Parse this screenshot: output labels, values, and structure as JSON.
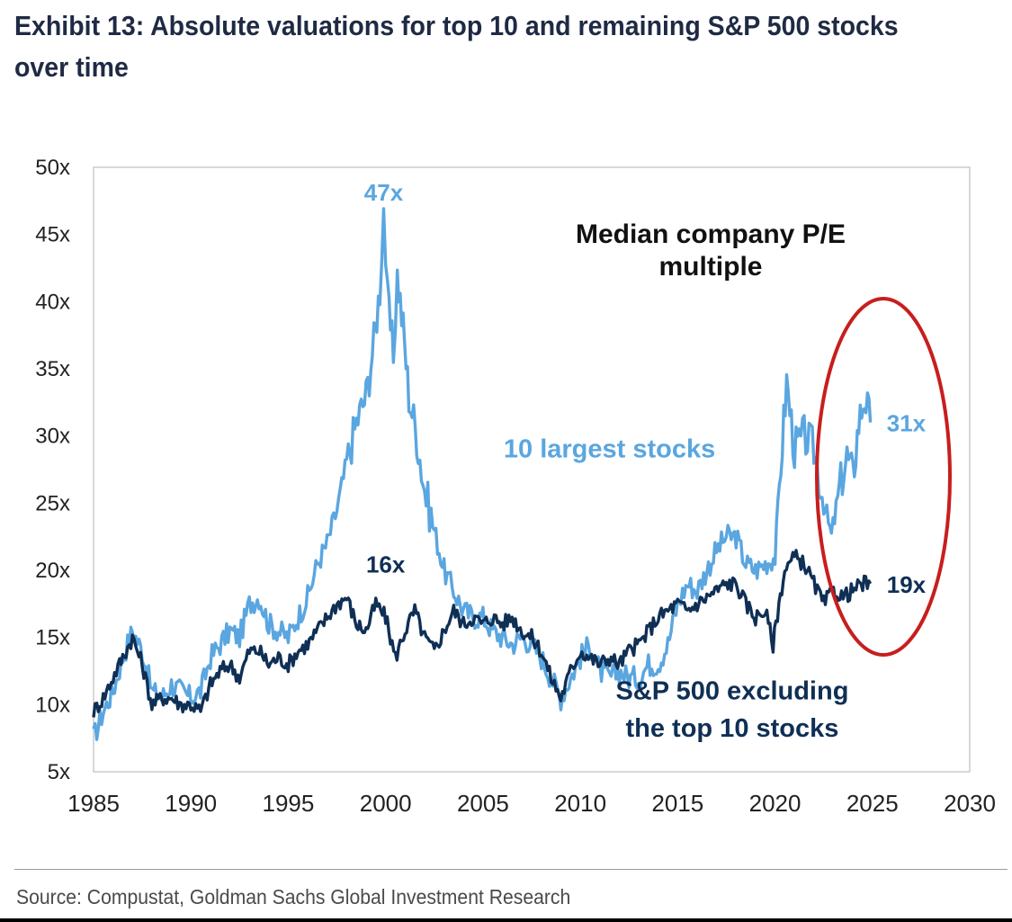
{
  "title": "Exhibit 13: Absolute valuations for top 10 and remaining S&P 500 stocks over time",
  "source": "Source: Compustat, Goldman Sachs Global Investment Research",
  "chart_data": {
    "type": "line",
    "xlim": [
      1985,
      2030
    ],
    "ylim": [
      5,
      50
    ],
    "x_ticks": [
      1985,
      1990,
      1995,
      2000,
      2005,
      2010,
      2015,
      2020,
      2025,
      2030
    ],
    "y_ticks": [
      5,
      10,
      15,
      20,
      25,
      30,
      35,
      40,
      45,
      50
    ],
    "x_tick_labels": [
      "1985",
      "1990",
      "1995",
      "2000",
      "2005",
      "2010",
      "2015",
      "2020",
      "2025",
      "2030"
    ],
    "y_tick_labels": [
      "5x",
      "10x",
      "15x",
      "20x",
      "25x",
      "30x",
      "35x",
      "40x",
      "45x",
      "50x"
    ],
    "grid": false,
    "annotation_title": [
      "Median company P/E",
      "multiple"
    ],
    "series": [
      {
        "name": "10 largest stocks",
        "color": "#5aa6e0",
        "points": [
          [
            1985.0,
            7.5
          ],
          [
            1985.5,
            9.5
          ],
          [
            1986.0,
            11.0
          ],
          [
            1986.5,
            13.5
          ],
          [
            1987.0,
            15.5
          ],
          [
            1987.5,
            14.0
          ],
          [
            1988.0,
            11.0
          ],
          [
            1988.5,
            10.5
          ],
          [
            1989.0,
            11.5
          ],
          [
            1989.5,
            11.0
          ],
          [
            1990.0,
            10.5
          ],
          [
            1990.5,
            11.0
          ],
          [
            1991.0,
            13.5
          ],
          [
            1991.5,
            14.5
          ],
          [
            1992.0,
            15.5
          ],
          [
            1992.5,
            15.0
          ],
          [
            1993.0,
            17.5
          ],
          [
            1993.5,
            18.0
          ],
          [
            1994.0,
            16.0
          ],
          [
            1994.5,
            15.5
          ],
          [
            1995.0,
            15.0
          ],
          [
            1995.5,
            16.5
          ],
          [
            1996.0,
            18.0
          ],
          [
            1996.5,
            20.5
          ],
          [
            1997.0,
            22.0
          ],
          [
            1997.5,
            24.5
          ],
          [
            1998.0,
            28.0
          ],
          [
            1998.5,
            31.0
          ],
          [
            1999.0,
            33.0
          ],
          [
            1999.4,
            37.0
          ],
          [
            1999.7,
            41.0
          ],
          [
            1999.9,
            47.0
          ],
          [
            2000.1,
            40.0
          ],
          [
            2000.4,
            36.0
          ],
          [
            2000.6,
            42.0
          ],
          [
            2000.9,
            38.0
          ],
          [
            2001.2,
            33.0
          ],
          [
            2001.6,
            30.0
          ],
          [
            2002.0,
            26.0
          ],
          [
            2002.5,
            23.0
          ],
          [
            2003.0,
            20.0
          ],
          [
            2003.5,
            18.5
          ],
          [
            2004.0,
            17.0
          ],
          [
            2004.5,
            16.5
          ],
          [
            2005.0,
            16.5
          ],
          [
            2005.5,
            15.5
          ],
          [
            2006.0,
            15.0
          ],
          [
            2006.5,
            14.5
          ],
          [
            2007.0,
            15.0
          ],
          [
            2007.5,
            14.5
          ],
          [
            2008.0,
            13.5
          ],
          [
            2008.5,
            12.0
          ],
          [
            2009.0,
            10.5
          ],
          [
            2009.5,
            12.0
          ],
          [
            2010.0,
            13.5
          ],
          [
            2010.5,
            14.5
          ],
          [
            2011.0,
            12.5
          ],
          [
            2011.5,
            12.0
          ],
          [
            2012.0,
            12.5
          ],
          [
            2012.5,
            12.0
          ],
          [
            2013.0,
            12.0
          ],
          [
            2013.5,
            13.0
          ],
          [
            2014.0,
            13.0
          ],
          [
            2014.5,
            14.5
          ],
          [
            2015.0,
            17.5
          ],
          [
            2015.5,
            19.0
          ],
          [
            2016.0,
            18.5
          ],
          [
            2016.5,
            20.0
          ],
          [
            2017.0,
            21.5
          ],
          [
            2017.5,
            22.5
          ],
          [
            2018.0,
            22.5
          ],
          [
            2018.5,
            20.5
          ],
          [
            2019.0,
            20.0
          ],
          [
            2019.5,
            20.5
          ],
          [
            2020.0,
            21.0
          ],
          [
            2020.3,
            28.0
          ],
          [
            2020.6,
            34.0
          ],
          [
            2021.0,
            29.0
          ],
          [
            2021.5,
            30.0
          ],
          [
            2022.0,
            29.0
          ],
          [
            2022.5,
            25.0
          ],
          [
            2022.9,
            22.5
          ],
          [
            2023.3,
            26.0
          ],
          [
            2023.7,
            28.5
          ],
          [
            2024.0,
            27.0
          ],
          [
            2024.3,
            31.0
          ],
          [
            2024.6,
            33.0
          ],
          [
            2024.9,
            31.0
          ]
        ]
      },
      {
        "name": "S&P 500 excluding the top 10 stocks",
        "color": "#0f2f55",
        "points": [
          [
            1985.0,
            9.5
          ],
          [
            1985.5,
            10.5
          ],
          [
            1986.0,
            12.0
          ],
          [
            1986.5,
            13.5
          ],
          [
            1987.0,
            15.0
          ],
          [
            1987.5,
            13.0
          ],
          [
            1988.0,
            10.0
          ],
          [
            1988.5,
            10.5
          ],
          [
            1989.0,
            10.5
          ],
          [
            1989.5,
            10.0
          ],
          [
            1990.0,
            10.0
          ],
          [
            1990.5,
            9.5
          ],
          [
            1991.0,
            11.5
          ],
          [
            1991.5,
            12.5
          ],
          [
            1992.0,
            13.0
          ],
          [
            1992.5,
            12.0
          ],
          [
            1993.0,
            14.0
          ],
          [
            1993.5,
            14.0
          ],
          [
            1994.0,
            13.0
          ],
          [
            1994.5,
            13.5
          ],
          [
            1995.0,
            13.0
          ],
          [
            1995.5,
            14.0
          ],
          [
            1996.0,
            14.5
          ],
          [
            1996.5,
            15.5
          ],
          [
            1997.0,
            16.5
          ],
          [
            1997.5,
            17.5
          ],
          [
            1998.0,
            18.0
          ],
          [
            1998.5,
            16.0
          ],
          [
            1999.0,
            15.5
          ],
          [
            1999.5,
            17.5
          ],
          [
            2000.0,
            16.5
          ],
          [
            2000.5,
            13.5
          ],
          [
            2001.0,
            15.5
          ],
          [
            2001.5,
            17.0
          ],
          [
            2002.0,
            15.0
          ],
          [
            2002.5,
            14.0
          ],
          [
            2003.0,
            15.5
          ],
          [
            2003.5,
            17.0
          ],
          [
            2004.0,
            16.0
          ],
          [
            2004.5,
            16.5
          ],
          [
            2005.0,
            16.0
          ],
          [
            2005.5,
            16.5
          ],
          [
            2006.0,
            16.0
          ],
          [
            2006.5,
            16.5
          ],
          [
            2007.0,
            15.5
          ],
          [
            2007.5,
            15.0
          ],
          [
            2008.0,
            14.0
          ],
          [
            2008.5,
            12.0
          ],
          [
            2009.0,
            10.5
          ],
          [
            2009.5,
            12.5
          ],
          [
            2010.0,
            14.0
          ],
          [
            2010.5,
            13.5
          ],
          [
            2011.0,
            13.0
          ],
          [
            2011.5,
            13.5
          ],
          [
            2012.0,
            13.0
          ],
          [
            2012.5,
            14.0
          ],
          [
            2013.0,
            14.5
          ],
          [
            2013.5,
            15.5
          ],
          [
            2014.0,
            16.5
          ],
          [
            2014.5,
            17.0
          ],
          [
            2015.0,
            17.5
          ],
          [
            2015.5,
            17.0
          ],
          [
            2016.0,
            17.5
          ],
          [
            2016.5,
            18.0
          ],
          [
            2017.0,
            18.5
          ],
          [
            2017.5,
            19.0
          ],
          [
            2018.0,
            19.0
          ],
          [
            2018.5,
            17.5
          ],
          [
            2019.0,
            16.5
          ],
          [
            2019.5,
            17.0
          ],
          [
            2019.9,
            14.5
          ],
          [
            2020.2,
            17.5
          ],
          [
            2020.5,
            20.0
          ],
          [
            2021.0,
            21.0
          ],
          [
            2021.5,
            20.5
          ],
          [
            2022.0,
            19.0
          ],
          [
            2022.5,
            17.5
          ],
          [
            2023.0,
            18.5
          ],
          [
            2023.5,
            18.0
          ],
          [
            2024.0,
            18.5
          ],
          [
            2024.5,
            19.0
          ],
          [
            2024.9,
            19.0
          ]
        ]
      }
    ],
    "annotations": [
      {
        "text": "47x",
        "x": 1999.9,
        "y": 47,
        "series": 0
      },
      {
        "text": "16x",
        "x": 2000.0,
        "y": 18.5,
        "series": 1
      },
      {
        "text": "31x",
        "x": 2026.2,
        "y": 31,
        "series": 0
      },
      {
        "text": "19x",
        "x": 2026.2,
        "y": 19,
        "series": 1
      },
      {
        "text": "10 largest stocks",
        "x": 2011.5,
        "y": 28.4,
        "series": 0
      },
      {
        "text": "S&P 500 excluding",
        "x": 2017.8,
        "y": 10.4,
        "series": 1
      },
      {
        "text": "the top 10 stocks",
        "x": 2017.8,
        "y": 7.6,
        "series": 1
      }
    ],
    "highlight_ellipse_color": "#c81e1e"
  }
}
